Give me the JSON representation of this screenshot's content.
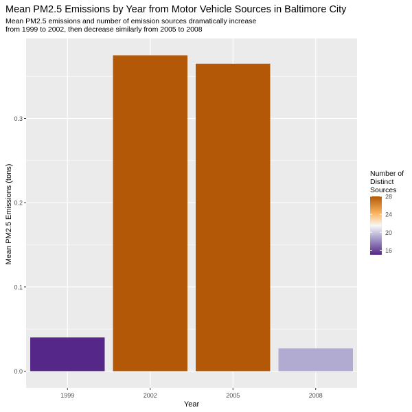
{
  "chart_data": {
    "type": "bar",
    "title": "Mean PM2.5 Emissions by Year from Motor Vehicle Sources in Baltimore City",
    "subtitle": "Mean PM2.5 emissions and number of emission sources dramatically increase\nfrom 1999 to 2002, then decrease similarly from 2005 to 2008",
    "xlabel": "Year",
    "ylabel": "Mean PM2.5 Emissions (tons)",
    "categories": [
      "1999",
      "2002",
      "2005",
      "2008"
    ],
    "values": [
      0.04,
      0.375,
      0.365,
      0.027
    ],
    "fill_values": [
      15,
      28,
      28,
      19
    ],
    "ylim": [
      -0.02,
      0.395
    ],
    "yticks": [
      0.0,
      0.1,
      0.2,
      0.3
    ],
    "ytick_labels": [
      "0.0",
      "0.1",
      "0.2",
      "0.3"
    ],
    "grid": true,
    "legend": {
      "title": "Number of\nDistinct\nSources",
      "position": "right",
      "range": [
        15,
        28
      ],
      "ticks": [
        16,
        20,
        24,
        28
      ],
      "tick_labels": [
        "16",
        "20",
        "24",
        "28"
      ]
    },
    "colors": {
      "panel_bg": "#ebebeb",
      "grid": "#ffffff",
      "low": "#542788",
      "mid_low": "#b2abd2",
      "mid": "#f7f7f7",
      "mid_high": "#fdb863",
      "high": "#b35806"
    }
  }
}
